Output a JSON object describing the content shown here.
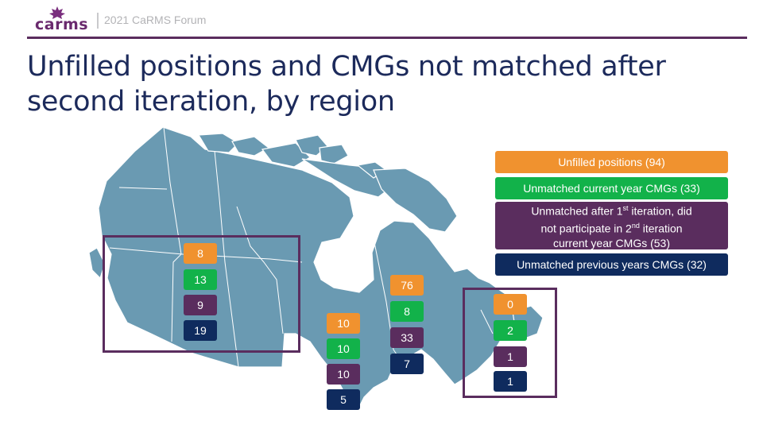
{
  "header": {
    "logo_text": "carms",
    "forum_label": "2021 CaRMS Forum"
  },
  "title": "Unfilled positions and CMGs not matched after second iteration, by region",
  "colors": {
    "unfilled": "#f0922f",
    "unmatched_current": "#12b24a",
    "unmatched_after_first": "#5a2d5e",
    "unmatched_previous": "#0f2b5e",
    "map_land": "#6a9ab2",
    "header_line": "#5a2d5e",
    "title": "#1c2a5b"
  },
  "legend": {
    "unfilled": "Unfilled positions (94)",
    "unmatched_current": "Unmatched current year CMGs (33)",
    "unmatched_after_first_line1_pre": "Unmatched after 1",
    "unmatched_after_first_sup1": "st",
    "unmatched_after_first_line1_post": " iteration, did",
    "unmatched_after_first_line2_pre": "not participate in 2",
    "unmatched_after_first_sup2": "nd",
    "unmatched_after_first_line2_post": " iteration",
    "unmatched_after_first_line3": "current year CMGs (53)",
    "unmatched_previous": "Unmatched previous years CMGs (32)"
  },
  "regions": {
    "west": {
      "unfilled": "8",
      "unmatched_current": "13",
      "unmatched_after_first": "9",
      "unmatched_previous": "19"
    },
    "ontario": {
      "unfilled": "10",
      "unmatched_current": "10",
      "unmatched_after_first": "10",
      "unmatched_previous": "5"
    },
    "quebec": {
      "unfilled": "76",
      "unmatched_current": "8",
      "unmatched_after_first": "33",
      "unmatched_previous": "7"
    },
    "atlantic": {
      "unfilled": "0",
      "unmatched_current": "2",
      "unmatched_after_first": "1",
      "unmatched_previous": "1"
    }
  }
}
